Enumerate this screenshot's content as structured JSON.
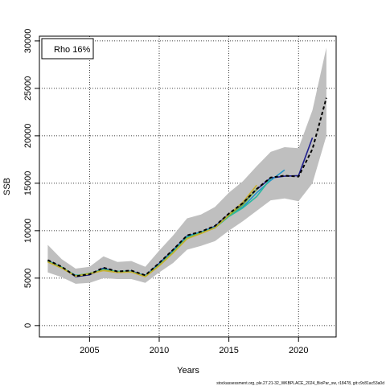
{
  "chart_data": {
    "type": "line",
    "xlabel": "Years",
    "ylabel": "SSB",
    "xlim": [
      2001.4,
      2022.7
    ],
    "ylim": [
      -1200,
      30500
    ],
    "x_ticks": [
      2005,
      2010,
      2015,
      2020
    ],
    "y_ticks": [
      0,
      5000,
      10000,
      15000,
      20000,
      25000,
      30000
    ],
    "grid": true,
    "legend_text": "Rho 16%",
    "legend_position": "top-left",
    "footnote": "stockassessment.org, ple.27.21-32_WKBPLACE_2024_BioPar_sw, r18478, git:c9c81ac53a0d",
    "ci_band": {
      "x": [
        2002,
        2003,
        2004,
        2005,
        2006,
        2007,
        2008,
        2009,
        2010,
        2011,
        2012,
        2013,
        2014,
        2015,
        2016,
        2017,
        2018,
        2019,
        2020,
        2021,
        2022
      ],
      "lower": [
        5600,
        5100,
        4400,
        4500,
        5000,
        4900,
        4900,
        4500,
        5600,
        6600,
        8000,
        8400,
        8900,
        10000,
        11000,
        12100,
        13200,
        13400,
        13100,
        15000,
        20000
      ],
      "upper": [
        8500,
        7000,
        6000,
        6200,
        7300,
        6700,
        6800,
        6200,
        7900,
        9500,
        11300,
        11700,
        12500,
        14000,
        15200,
        16800,
        18300,
        18800,
        18700,
        22700,
        29300
      ],
      "color": "#bfbfbf"
    },
    "series": [
      {
        "color": "#000000",
        "dashed": true,
        "x": [
          2002,
          2003,
          2004,
          2005,
          2006,
          2007,
          2008,
          2009,
          2010,
          2011,
          2012,
          2013,
          2014,
          2015,
          2016,
          2017,
          2018,
          2019,
          2020,
          2021,
          2022
        ],
        "values": [
          6900,
          6200,
          5200,
          5400,
          6100,
          5700,
          5800,
          5300,
          6600,
          8000,
          9500,
          9900,
          10500,
          11800,
          12900,
          14400,
          15600,
          15800,
          15700,
          18600,
          24000
        ]
      },
      {
        "color": "#1f1f8f",
        "x": [
          2002,
          2003,
          2004,
          2005,
          2006,
          2007,
          2008,
          2009,
          2010,
          2011,
          2012,
          2013,
          2014,
          2015,
          2016,
          2017,
          2018,
          2019,
          2020,
          2021
        ],
        "values": [
          6850,
          6150,
          5150,
          5350,
          6050,
          5650,
          5750,
          5250,
          6550,
          7950,
          9450,
          9850,
          10450,
          11750,
          12850,
          14350,
          15550,
          15750,
          15800,
          19800
        ]
      },
      {
        "color": "#2196c8",
        "x": [
          2002,
          2003,
          2004,
          2005,
          2006,
          2007,
          2008,
          2009,
          2010,
          2011,
          2012,
          2013,
          2014,
          2015,
          2016,
          2017,
          2018,
          2019
        ],
        "values": [
          6800,
          6100,
          5300,
          5450,
          5950,
          5700,
          5700,
          5250,
          6450,
          7850,
          9400,
          9850,
          10400,
          11600,
          12500,
          14000,
          15300,
          16400
        ]
      },
      {
        "color": "#2ab9a0",
        "x": [
          2002,
          2003,
          2004,
          2005,
          2006,
          2007,
          2008,
          2009,
          2010,
          2011,
          2012,
          2013,
          2014,
          2015,
          2016,
          2017,
          2018
        ],
        "values": [
          6800,
          6150,
          5250,
          5500,
          5900,
          5700,
          5700,
          5200,
          6400,
          7800,
          9300,
          9800,
          10300,
          11500,
          12400,
          13600,
          15500
        ]
      },
      {
        "color": "#7ab63c",
        "x": [
          2002,
          2003,
          2004,
          2005,
          2006,
          2007,
          2008,
          2009,
          2010,
          2011,
          2012,
          2013,
          2014,
          2015,
          2016,
          2017
        ],
        "values": [
          6750,
          6100,
          5250,
          5500,
          5850,
          5650,
          5650,
          5200,
          6350,
          7700,
          9200,
          9750,
          10300,
          11600,
          12700,
          14400
        ]
      },
      {
        "color": "#c8b030",
        "x": [
          2002,
          2003,
          2004,
          2005,
          2006,
          2007,
          2008,
          2009,
          2010,
          2011,
          2012,
          2013,
          2014,
          2015,
          2016,
          2017
        ],
        "values": [
          6700,
          6050,
          5200,
          5450,
          5800,
          5600,
          5650,
          5150,
          6300,
          7650,
          9150,
          9700,
          10300,
          11700,
          13000,
          14800
        ]
      }
    ]
  }
}
